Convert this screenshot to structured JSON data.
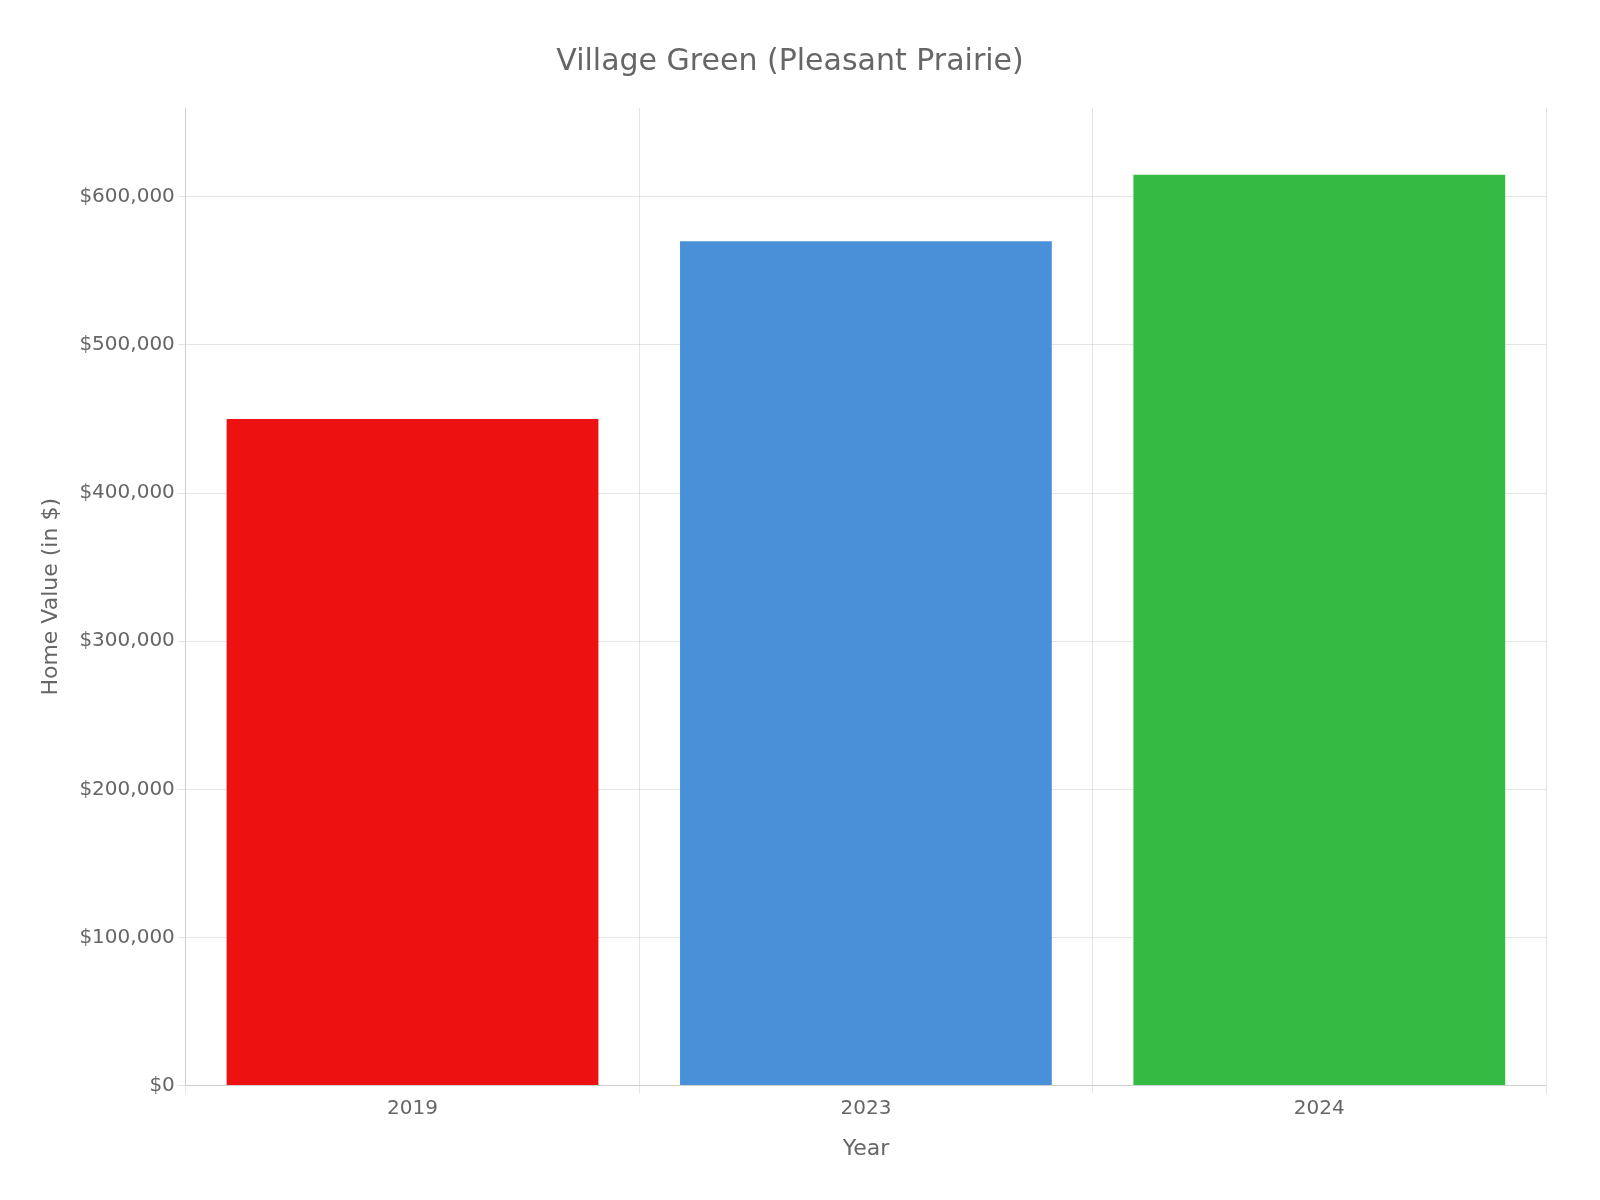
{
  "chart_data": {
    "type": "bar",
    "title": "Village Green (Pleasant Prairie)",
    "categories": [
      "2019",
      "2023",
      "2024"
    ],
    "values": [
      450000,
      570000,
      615000
    ],
    "colors": [
      "#ee1111",
      "#4a90d9",
      "#33bb44"
    ],
    "xlabel": "Year",
    "ylabel": "Home Value (in $)",
    "ylim": [
      0,
      660000
    ],
    "yticks": [
      {
        "value": 0,
        "label": "$0"
      },
      {
        "value": 100000,
        "label": "$100,000"
      },
      {
        "value": 200000,
        "label": "$200,000"
      },
      {
        "value": 300000,
        "label": "$300,000"
      },
      {
        "value": 400000,
        "label": "$400,000"
      },
      {
        "value": 500000,
        "label": "$500,000"
      },
      {
        "value": 600000,
        "label": "$600,000"
      }
    ],
    "grid": true
  }
}
